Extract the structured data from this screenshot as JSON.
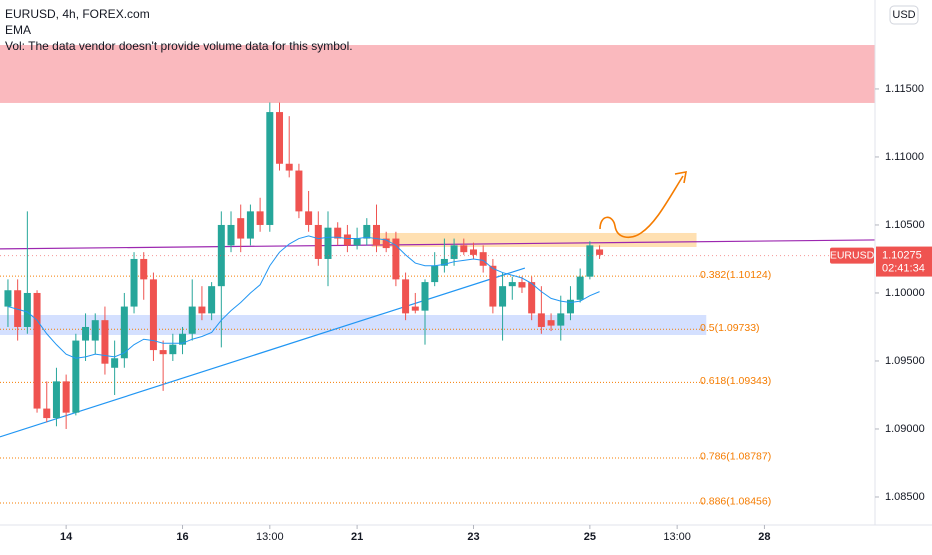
{
  "chart_data": {
    "type": "candlestick",
    "title": "EURUSD, 4h, FOREX.com",
    "indicator": "EMA",
    "volume_note": "Vol: The data vendor doesn't provide volume data for this symbol.",
    "currency_button": "USD",
    "xlim": [
      -0.82,
      89.4
    ],
    "ylim": [
      1.08294,
      1.12154
    ],
    "yticks": [
      {
        "value": 1.115,
        "label": "1.11500"
      },
      {
        "value": 1.11,
        "label": "1.11000"
      },
      {
        "value": 1.105,
        "label": "1.10500"
      },
      {
        "value": 1.1,
        "label": "1.10000"
      },
      {
        "value": 1.095,
        "label": "1.09500"
      },
      {
        "value": 1.09,
        "label": "1.09000"
      },
      {
        "value": 1.085,
        "label": "1.08500"
      }
    ],
    "xticks": [
      {
        "value": 6,
        "label": "14"
      },
      {
        "value": 18,
        "label": "16"
      },
      {
        "value": 27,
        "label": "13:00"
      },
      {
        "value": 36,
        "label": "21"
      },
      {
        "value": 48,
        "label": "23"
      },
      {
        "value": 60,
        "label": "25"
      },
      {
        "value": 69,
        "label": "13:00"
      },
      {
        "value": 78,
        "label": "28"
      }
    ],
    "up_color": "#26a69a",
    "down_color": "#ef5350",
    "series": [
      {
        "name": "EURUSD",
        "open": [
          1.099,
          1.1002,
          1.0975,
          1.1,
          1.0915,
          1.0908,
          1.0935,
          1.0912,
          1.0965,
          1.0965,
          1.098,
          1.0945,
          1.0952,
          1.099,
          1.1025,
          1.101,
          1.0958,
          1.0955,
          1.0962,
          1.097,
          1.099,
          1.0985,
          1.1005,
          1.1035,
          1.1055,
          1.104,
          1.106,
          1.105,
          1.1133,
          1.1095,
          1.109,
          1.106,
          1.105,
          1.1025,
          1.1048,
          1.1043,
          1.1035,
          1.104,
          1.105,
          1.104,
          1.104,
          1.101,
          1.099,
          1.0987,
          1.1008,
          1.102,
          1.1025,
          1.1035,
          1.1032,
          1.103,
          1.102,
          1.099,
          1.1005,
          1.1008,
          1.1008,
          1.0985,
          1.098,
          1.0976,
          1.0985,
          1.0995,
          1.1012,
          1.1032
        ],
        "high": [
          1.101,
          1.101,
          1.106,
          1.1002,
          1.0935,
          1.0945,
          1.094,
          1.097,
          1.0985,
          1.0985,
          1.099,
          1.0965,
          1.1,
          1.103,
          1.103,
          1.1015,
          1.0965,
          1.097,
          1.0975,
          1.101,
          1.1005,
          1.1008,
          1.106,
          1.106,
          1.1065,
          1.1065,
          1.107,
          1.114,
          1.114,
          1.113,
          1.1095,
          1.1075,
          1.106,
          1.106,
          1.1052,
          1.105,
          1.1048,
          1.1055,
          1.1065,
          1.1045,
          1.1045,
          1.1015,
          1.1,
          1.101,
          1.103,
          1.104,
          1.104,
          1.104,
          1.1037,
          1.1035,
          1.1025,
          1.1015,
          1.1012,
          1.1012,
          1.1012,
          1.1005,
          1.0985,
          1.0998,
          1.1005,
          1.1018,
          1.1038,
          1.1035
        ],
        "low": [
          1.0975,
          1.0965,
          1.097,
          1.0912,
          1.0905,
          1.0902,
          1.09,
          1.091,
          1.095,
          1.0955,
          1.094,
          1.0925,
          1.0945,
          1.0985,
          1.0995,
          1.095,
          1.0928,
          1.095,
          1.0955,
          1.0965,
          1.098,
          1.098,
          1.096,
          1.103,
          1.103,
          1.1035,
          1.1045,
          1.1045,
          1.109,
          1.1085,
          1.1055,
          1.1045,
          1.102,
          1.1005,
          1.1035,
          1.103,
          1.1032,
          1.1035,
          1.103,
          1.103,
          1.1005,
          1.098,
          1.0985,
          1.0962,
          1.1005,
          1.1015,
          1.102,
          1.1028,
          1.1025,
          1.1015,
          1.0985,
          1.0965,
          1.0995,
          1.1,
          1.098,
          1.097,
          1.0972,
          1.0965,
          1.098,
          1.0993,
          1.101,
          1.1025
        ],
        "close": [
          1.1002,
          1.0975,
          1.1,
          1.0915,
          1.0908,
          1.0935,
          1.0912,
          1.0965,
          1.0975,
          1.098,
          1.0948,
          1.0952,
          1.099,
          1.1025,
          1.101,
          1.0958,
          1.0955,
          1.0962,
          1.097,
          1.099,
          1.0985,
          1.1005,
          1.105,
          1.105,
          1.104,
          1.106,
          1.105,
          1.1133,
          1.1095,
          1.109,
          1.106,
          1.105,
          1.1025,
          1.1048,
          1.104,
          1.1035,
          1.104,
          1.105,
          1.1035,
          1.1033,
          1.101,
          1.0985,
          1.0987,
          1.1008,
          1.102,
          1.1025,
          1.1035,
          1.103,
          1.1028,
          1.102,
          1.099,
          1.1005,
          1.1008,
          1.1004,
          1.0985,
          1.0975,
          1.0976,
          1.0985,
          1.0995,
          1.1012,
          1.1035,
          1.1028
        ]
      }
    ],
    "ema": {
      "color": "#2196f3",
      "values": [
        1.099,
        1.0988,
        1.0986,
        1.098,
        1.097,
        1.0962,
        1.0955,
        1.0952,
        1.0953,
        1.0955,
        1.0954,
        1.0953,
        1.0956,
        1.0962,
        1.0966,
        1.0965,
        1.0963,
        1.0963,
        1.0963,
        1.0966,
        1.0968,
        1.0971,
        1.098,
        1.0987,
        1.0993,
        1.1,
        1.1006,
        1.102,
        1.103,
        1.1036,
        1.104,
        1.1042,
        1.104,
        1.1041,
        1.1041,
        1.104,
        1.104,
        1.1041,
        1.104,
        1.1039,
        1.1035,
        1.1028,
        1.1022,
        1.102,
        1.102,
        1.1021,
        1.1023,
        1.1024,
        1.1025,
        1.1024,
        1.1018,
        1.1015,
        1.1013,
        1.1011,
        1.1007,
        1.1001,
        1.0996,
        1.0994,
        1.0993,
        1.0994,
        1.0998,
        1.1001
      ]
    },
    "zones": [
      {
        "color": "#f23645",
        "opacity": 0.35,
        "x": [
          -0.82,
          89.4
        ],
        "top": 1.11823,
        "bottom": 1.11397
      },
      {
        "color": "#2962ff",
        "opacity": 0.2,
        "x": [
          -0.82,
          72
        ],
        "top": 1.09838,
        "bottom": 1.09691
      },
      {
        "color": "#ff9800",
        "opacity": 0.3,
        "x": [
          37.5,
          71
        ],
        "top": 1.10441,
        "bottom": 1.10338
      }
    ],
    "lines": [
      {
        "color": "#9c27b0",
        "x": [
          -0.82,
          89.4
        ],
        "y": [
          1.10324,
          1.1039
        ]
      },
      {
        "color": "#2196f3",
        "x": [
          -0.82,
          53.3
        ],
        "y": [
          1.08942,
          1.10183
        ]
      }
    ],
    "fib_levels": [
      {
        "value": 1.10124,
        "label": "0.382(1.10124)"
      },
      {
        "value": 1.09733,
        "label": "0.5(1.09733)"
      },
      {
        "value": 1.09343,
        "label": "0.618(1.09343)"
      },
      {
        "value": 1.08787,
        "label": "0.786(1.08787)"
      },
      {
        "value": 1.08456,
        "label": "0.886(1.08456)"
      }
    ],
    "fib_color": "#f57c00",
    "last_price": {
      "symbol": "EURUSD",
      "value": 1.10275,
      "label": "1.10275",
      "countdown": "02:41:34"
    }
  }
}
